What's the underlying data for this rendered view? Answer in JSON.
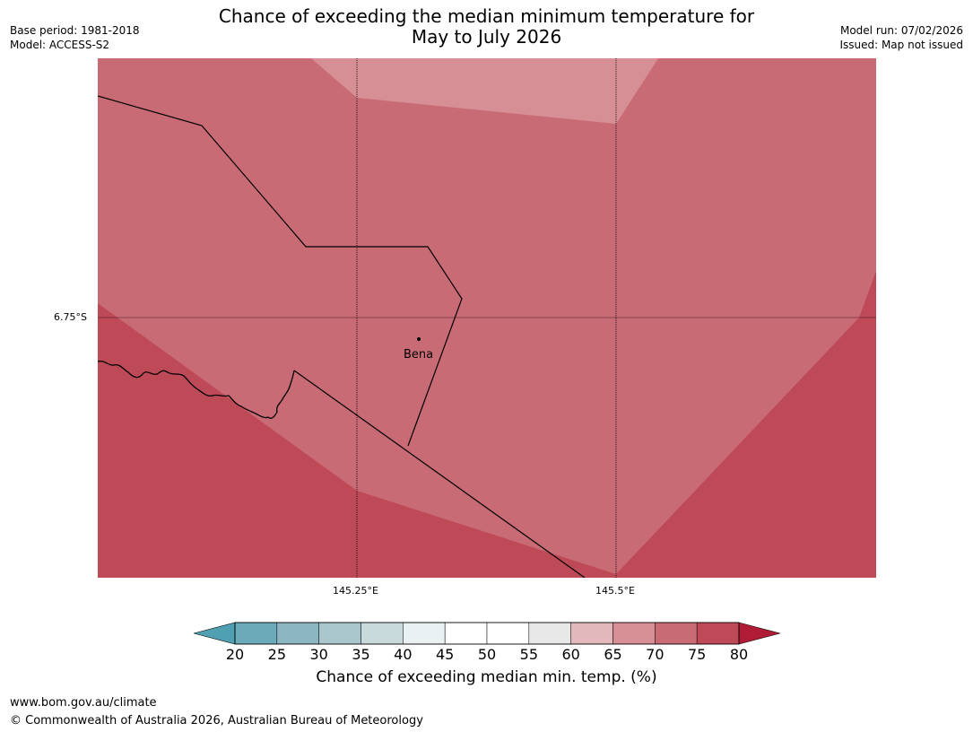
{
  "header": {
    "title_line1": "Chance of exceeding the median minimum temperature for",
    "title_line2": "May to July 2026",
    "base_period": "Base period: 1981-2018",
    "model": "Model: ACCESS-S2",
    "model_run": "Model run: 07/02/2026",
    "issued": "Issued: Map not issued"
  },
  "map": {
    "lat_label": "6.75°S",
    "lon_labels": [
      "145.25°E",
      "145.5°E"
    ],
    "place": "Bena",
    "colors": {
      "band_60_65": "#e3b8bc",
      "band_65_70": "#d68f95",
      "band_70_75": "#c96b74",
      "band_75_80": "#bf4a57"
    }
  },
  "colorbar": {
    "labels": [
      "20",
      "25",
      "30",
      "35",
      "40",
      "45",
      "50",
      "55",
      "60",
      "65",
      "70",
      "75",
      "80"
    ],
    "colors": [
      "#4fa0b1",
      "#6aaab9",
      "#8db6c3",
      "#a9c6cd",
      "#c9dadd",
      "#e9f1f3",
      "#ffffff",
      "#ffffff",
      "#e8e8e8",
      "#e3b8bc",
      "#d68f95",
      "#c96b74",
      "#bf4a57",
      "#b01c36"
    ],
    "title": "Chance of exceeding median min. temp. (%)"
  },
  "footer": {
    "url": "www.bom.gov.au/climate",
    "copyright": "© Commonwealth of Australia 2026, Australian Bureau of Meteorology"
  }
}
